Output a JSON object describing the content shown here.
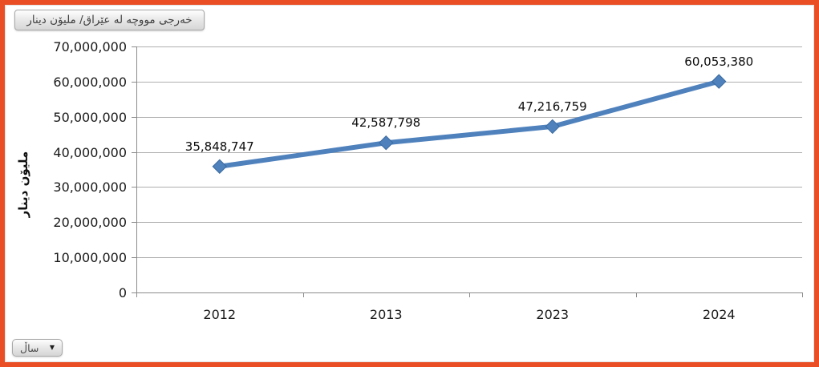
{
  "frame": {
    "border_color": "#E94E25",
    "background_color": "#FFFFFF"
  },
  "pivot_field_button": {
    "label": "خەرجی مووچە لە عێراق/ ملیۆن دینار"
  },
  "axis_field_button": {
    "label": "ساڵ",
    "arrow_glyph": "▼"
  },
  "chart_data": {
    "type": "line",
    "title": "",
    "categories": [
      "2012",
      "2013",
      "2023",
      "2024"
    ],
    "series": [
      {
        "name": "خەرجی مووچە لە عێراق/ ملیۆن دینار",
        "values": [
          35848747,
          42587798,
          47216759,
          60053380
        ]
      }
    ],
    "data_labels": [
      "35,848,747",
      "42,587,798",
      "47,216,759",
      "60,053,380"
    ],
    "xlabel": "ساڵ",
    "ylabel": "ملیۆن دینار",
    "ylim": [
      0,
      70000000
    ],
    "ytick_step": 10000000,
    "ytick_labels": [
      "0",
      "10,000,000",
      "20,000,000",
      "30,000,000",
      "40,000,000",
      "50,000,000",
      "60,000,000",
      "70,000,000"
    ],
    "grid": true,
    "legend": "none",
    "line_color": "#4F81BD",
    "marker": "diamond",
    "axis_color": "#8C8C8C",
    "gridline_color": "#AFAFAF"
  }
}
